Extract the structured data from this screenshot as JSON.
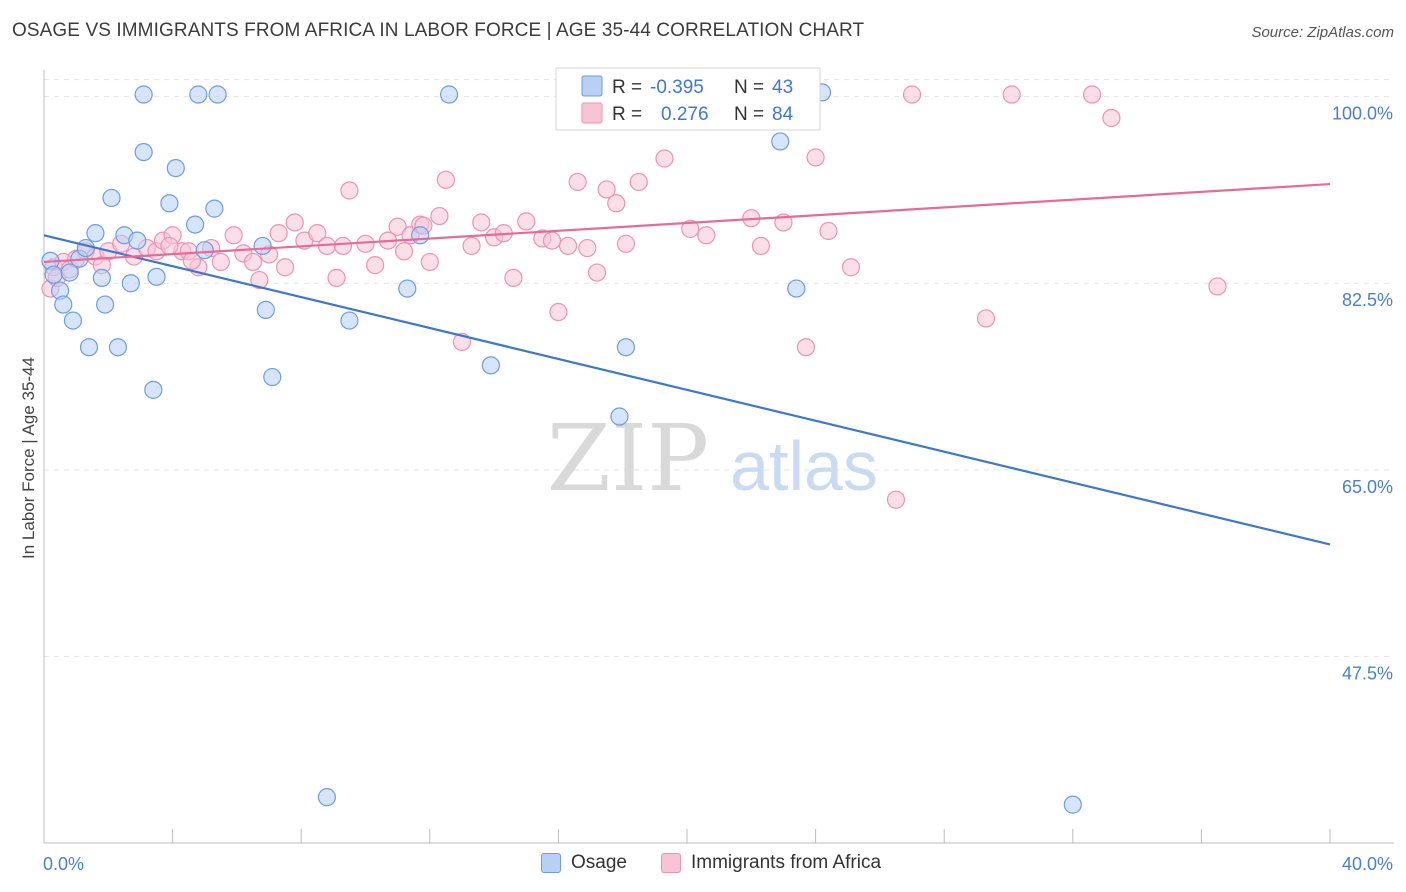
{
  "header": {
    "title": "OSAGE VS IMMIGRANTS FROM AFRICA IN LABOR FORCE | AGE 35-44 CORRELATION CHART",
    "source": "Source: ZipAtlas.com"
  },
  "watermark": {
    "zip": "ZIP",
    "atlas": "atlas"
  },
  "colors": {
    "osage_fill": "#b7d0f5",
    "osage_stroke": "#6d9de3",
    "osage_line": "#3a78d4",
    "africa_fill": "#f8c4d5",
    "africa_stroke": "#ee93b2",
    "africa_line": "#e86a98",
    "tick_text": "#4a7fd0",
    "grid": "#e3e3e3"
  },
  "legend": {
    "rows": [
      {
        "r_label": "R =",
        "r_value": "-0.395",
        "n_label": "N =",
        "n_value": "43"
      },
      {
        "r_label": "R =",
        "r_value": "0.276",
        "n_label": "N =",
        "n_value": "84"
      }
    ]
  },
  "bottom_legend": {
    "osage": "Osage",
    "africa": "Immigrants from Africa"
  },
  "chart_data": {
    "type": "scatter",
    "title": "OSAGE VS IMMIGRANTS FROM AFRICA IN LABOR FORCE | AGE 35-44 CORRELATION CHART",
    "xlabel": "",
    "ylabel": "In Labor Force | Age 35-44",
    "xlim": [
      0,
      40
    ],
    "ylim": [
      30,
      102.5
    ],
    "x_tick_labels": [
      {
        "value": 0,
        "label": "0.0%"
      },
      {
        "value": 40,
        "label": "40.0%"
      }
    ],
    "y_tick_labels": [
      {
        "value": 100,
        "label": "100.0%"
      },
      {
        "value": 82.5,
        "label": "82.5%"
      },
      {
        "value": 65,
        "label": "65.0%"
      },
      {
        "value": 47.5,
        "label": "47.5%"
      }
    ],
    "x_minor_ticks": [
      0,
      4,
      8,
      12,
      16,
      20,
      24,
      28,
      32,
      36,
      40
    ],
    "grid": true,
    "series": [
      {
        "name": "Osage",
        "r": -0.395,
        "n": 43,
        "trend": {
          "x": [
            0,
            40
          ],
          "y": [
            87.0,
            58.0
          ]
        },
        "points": [
          [
            0.2,
            84.6
          ],
          [
            0.3,
            83.3
          ],
          [
            0.5,
            81.8
          ],
          [
            0.6,
            80.5
          ],
          [
            0.8,
            83.5
          ],
          [
            0.9,
            79.0
          ],
          [
            1.1,
            84.8
          ],
          [
            1.3,
            85.8
          ],
          [
            1.4,
            76.5
          ],
          [
            1.6,
            87.2
          ],
          [
            1.8,
            83.0
          ],
          [
            1.9,
            80.5
          ],
          [
            2.1,
            90.5
          ],
          [
            2.3,
            76.5
          ],
          [
            2.5,
            87.0
          ],
          [
            2.7,
            82.5
          ],
          [
            2.9,
            86.5
          ],
          [
            3.1,
            94.8
          ],
          [
            3.1,
            100.2
          ],
          [
            3.4,
            72.5
          ],
          [
            3.5,
            83.1
          ],
          [
            3.9,
            90.0
          ],
          [
            4.1,
            93.3
          ],
          [
            4.7,
            88.0
          ],
          [
            4.8,
            100.2
          ],
          [
            5.0,
            85.6
          ],
          [
            5.3,
            89.5
          ],
          [
            5.4,
            100.2
          ],
          [
            6.8,
            86.0
          ],
          [
            6.9,
            80.0
          ],
          [
            7.1,
            73.7
          ],
          [
            8.8,
            34.3
          ],
          [
            9.5,
            79.0
          ],
          [
            11.3,
            82.0
          ],
          [
            11.7,
            87.0
          ],
          [
            12.6,
            100.2
          ],
          [
            13.9,
            74.8
          ],
          [
            17.9,
            70.0
          ],
          [
            18.1,
            76.5
          ],
          [
            22.9,
            95.8
          ],
          [
            23.4,
            82.0
          ],
          [
            32.0,
            33.6
          ],
          [
            24.2,
            100.4
          ]
        ]
      },
      {
        "name": "Immigrants from Africa",
        "r": 0.276,
        "n": 84,
        "trend": {
          "x": [
            0,
            40
          ],
          "y": [
            84.5,
            91.8
          ]
        },
        "points": [
          [
            0.2,
            82.0
          ],
          [
            0.3,
            84.0
          ],
          [
            0.4,
            83.0
          ],
          [
            0.6,
            84.5
          ],
          [
            0.8,
            83.8
          ],
          [
            1.0,
            84.8
          ],
          [
            1.3,
            85.5
          ],
          [
            1.6,
            85.0
          ],
          [
            1.8,
            84.2
          ],
          [
            2.0,
            85.5
          ],
          [
            2.4,
            86.2
          ],
          [
            2.8,
            85.0
          ],
          [
            3.2,
            85.8
          ],
          [
            3.5,
            85.5
          ],
          [
            3.7,
            86.5
          ],
          [
            4.0,
            87.0
          ],
          [
            4.3,
            85.5
          ],
          [
            4.5,
            85.5
          ],
          [
            4.8,
            84.0
          ],
          [
            5.2,
            85.8
          ],
          [
            5.5,
            84.5
          ],
          [
            5.9,
            87.0
          ],
          [
            6.2,
            85.3
          ],
          [
            6.5,
            84.5
          ],
          [
            6.7,
            82.8
          ],
          [
            7.0,
            85.2
          ],
          [
            7.3,
            87.2
          ],
          [
            7.5,
            84.0
          ],
          [
            7.8,
            88.2
          ],
          [
            8.1,
            86.5
          ],
          [
            8.5,
            87.2
          ],
          [
            8.8,
            86.0
          ],
          [
            9.1,
            83.0
          ],
          [
            9.3,
            86.0
          ],
          [
            9.5,
            91.2
          ],
          [
            10.0,
            86.2
          ],
          [
            10.3,
            84.2
          ],
          [
            10.7,
            86.5
          ],
          [
            11.0,
            87.8
          ],
          [
            11.2,
            85.5
          ],
          [
            11.4,
            87.0
          ],
          [
            11.7,
            88.0
          ],
          [
            12.0,
            84.5
          ],
          [
            12.3,
            88.8
          ],
          [
            12.5,
            92.2
          ],
          [
            13.0,
            77.0
          ],
          [
            13.3,
            86.0
          ],
          [
            13.6,
            88.2
          ],
          [
            14.0,
            86.8
          ],
          [
            14.3,
            87.2
          ],
          [
            14.6,
            83.0
          ],
          [
            15.0,
            88.3
          ],
          [
            15.5,
            86.7
          ],
          [
            15.8,
            86.5
          ],
          [
            16.0,
            79.8
          ],
          [
            16.3,
            86.0
          ],
          [
            16.6,
            92.0
          ],
          [
            16.9,
            85.8
          ],
          [
            17.2,
            83.5
          ],
          [
            17.5,
            91.3
          ],
          [
            17.8,
            90.0
          ],
          [
            18.1,
            86.2
          ],
          [
            18.5,
            92.0
          ],
          [
            19.3,
            94.2
          ],
          [
            20.1,
            87.6
          ],
          [
            20.6,
            87.0
          ],
          [
            21.5,
            100.2
          ],
          [
            22.0,
            88.6
          ],
          [
            22.3,
            86.0
          ],
          [
            23.0,
            88.2
          ],
          [
            23.7,
            76.5
          ],
          [
            24.0,
            94.3
          ],
          [
            24.4,
            87.4
          ],
          [
            25.1,
            84.0
          ],
          [
            26.5,
            62.2
          ],
          [
            27.0,
            100.2
          ],
          [
            29.3,
            79.2
          ],
          [
            30.1,
            100.2
          ],
          [
            32.6,
            100.2
          ],
          [
            33.2,
            98.0
          ],
          [
            36.5,
            82.2
          ],
          [
            11.8,
            87.9
          ],
          [
            3.9,
            86.0
          ],
          [
            4.6,
            84.6
          ]
        ]
      }
    ]
  }
}
